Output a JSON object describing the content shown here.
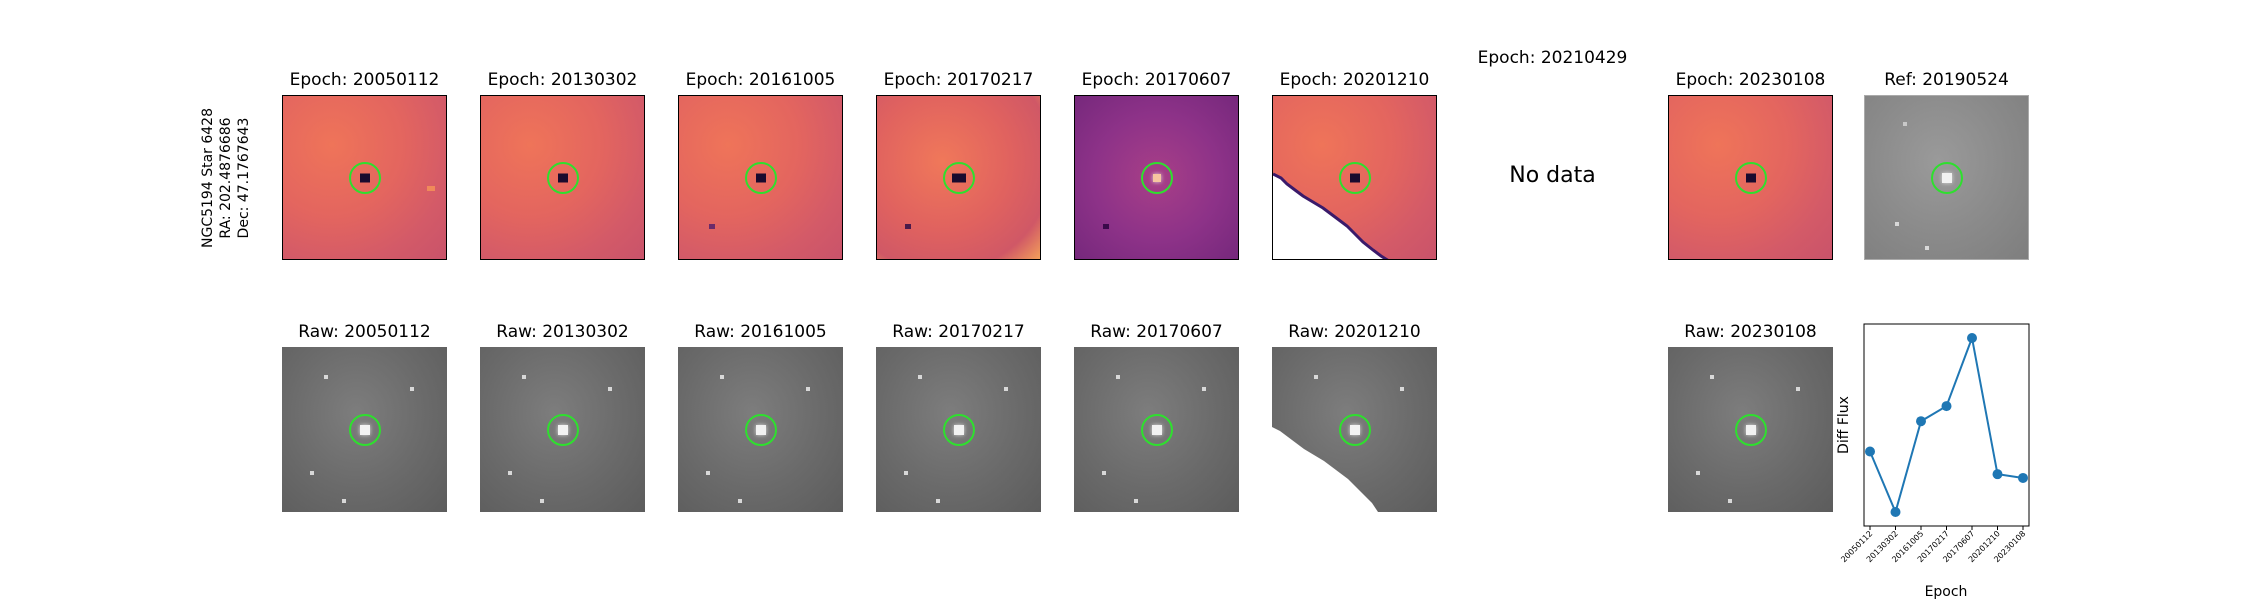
{
  "side_label": {
    "line1": "NGC5194 Star 6428",
    "line2": "RA: 202.4876686",
    "line3": "Dec: 47.1767643"
  },
  "top_row": [
    {
      "title": "Epoch: 20050112",
      "has_data": true
    },
    {
      "title": "Epoch: 20130302",
      "has_data": true
    },
    {
      "title": "Epoch: 20161005",
      "has_data": true
    },
    {
      "title": "Epoch: 20170217",
      "has_data": true
    },
    {
      "title": "Epoch: 20170607",
      "has_data": true
    },
    {
      "title": "Epoch: 20201210",
      "has_data": true
    },
    {
      "title": "Epoch: 20210429",
      "has_data": false,
      "message": "No data"
    },
    {
      "title": "Epoch: 20230108",
      "has_data": true
    },
    {
      "title": "Ref: 20190524",
      "has_data": true
    }
  ],
  "bottom_row": [
    {
      "title": "Raw: 20050112"
    },
    {
      "title": "Raw: 20130302"
    },
    {
      "title": "Raw: 20161005"
    },
    {
      "title": "Raw: 20170217"
    },
    {
      "title": "Raw: 20170607"
    },
    {
      "title": "Raw: 20201210"
    },
    {
      "title": "Raw: 20230108"
    }
  ],
  "colors": {
    "aperture_ring": "#2ee02e",
    "line": "#1f77b4"
  },
  "chart_data": {
    "type": "line",
    "title": "",
    "xlabel": "Epoch",
    "ylabel": "Diff Flux",
    "categories": [
      "20050112",
      "20130302",
      "20161005",
      "20170217",
      "20170607",
      "20201210",
      "20230108"
    ],
    "values": [
      0.4,
      0.08,
      0.56,
      0.64,
      1.0,
      0.28,
      0.26
    ],
    "y_ticks_shown": false,
    "grid": false,
    "legend": "none"
  }
}
